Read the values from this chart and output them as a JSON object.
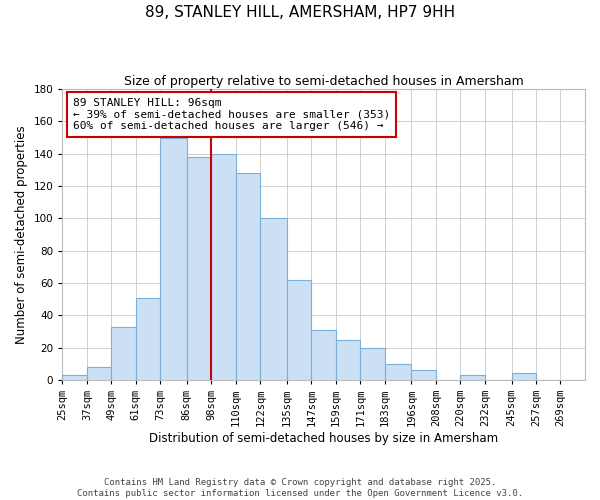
{
  "title": "89, STANLEY HILL, AMERSHAM, HP7 9HH",
  "subtitle": "Size of property relative to semi-detached houses in Amersham",
  "xlabel": "Distribution of semi-detached houses by size in Amersham",
  "ylabel": "Number of semi-detached properties",
  "bar_labels": [
    "25sqm",
    "37sqm",
    "49sqm",
    "61sqm",
    "73sqm",
    "86sqm",
    "98sqm",
    "110sqm",
    "122sqm",
    "135sqm",
    "147sqm",
    "159sqm",
    "171sqm",
    "183sqm",
    "196sqm",
    "208sqm",
    "220sqm",
    "232sqm",
    "245sqm",
    "257sqm",
    "269sqm"
  ],
  "bar_values": [
    3,
    8,
    33,
    51,
    150,
    138,
    140,
    128,
    100,
    62,
    31,
    25,
    20,
    10,
    6,
    0,
    3,
    0,
    4,
    0,
    0
  ],
  "bar_color": "#cce0f5",
  "bar_edge_color": "#7ab0d8",
  "annotation_line1": "89 STANLEY HILL: 96sqm",
  "annotation_line2": "← 39% of semi-detached houses are smaller (353)",
  "annotation_line3": "60% of semi-detached houses are larger (546) →",
  "annotation_box_color": "#ffffff",
  "annotation_box_edge_color": "#cc0000",
  "ref_line_color": "#cc0000",
  "footnote1": "Contains HM Land Registry data © Crown copyright and database right 2025.",
  "footnote2": "Contains public sector information licensed under the Open Government Licence v3.0.",
  "ylim": [
    0,
    180
  ],
  "yticks": [
    0,
    20,
    40,
    60,
    80,
    100,
    120,
    140,
    160,
    180
  ],
  "background_color": "#ffffff",
  "grid_color": "#c8c8c8",
  "title_fontsize": 11,
  "subtitle_fontsize": 9,
  "axis_label_fontsize": 8.5,
  "tick_fontsize": 7.5,
  "annotation_fontsize": 8,
  "footnote_fontsize": 6.5
}
